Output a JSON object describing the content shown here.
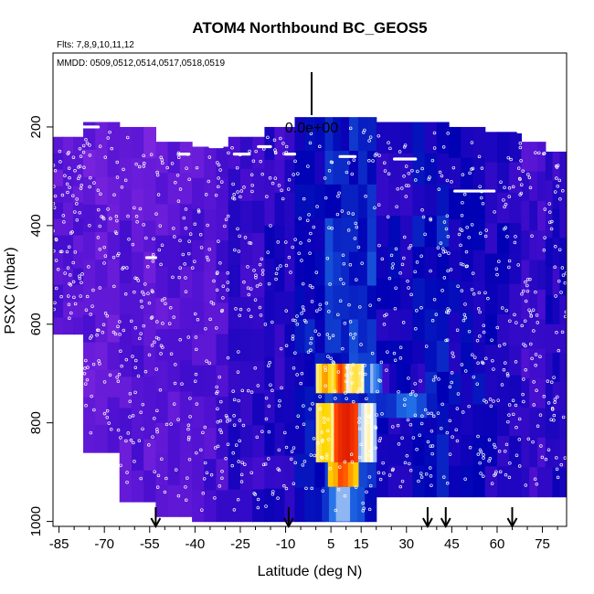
{
  "chart_data": {
    "type": "heatmap",
    "title": "ATOM4 Northbound BC_GEOS5",
    "subtitle_flights": "Flts: 7,8,9,10,11,12",
    "subtitle_dates": "MMDD: 0509,0512,0514,0517,0518,0519",
    "xlabel": "Latitude (deg N)",
    "ylabel": "PSXC (mbar)",
    "xlim": [
      -87,
      83
    ],
    "ylim": [
      1010,
      50
    ],
    "x_ticks": [
      -85,
      -70,
      -55,
      -40,
      -25,
      -10,
      5,
      15,
      30,
      45,
      60,
      75
    ],
    "y_ticks": [
      200,
      400,
      600,
      800,
      1000
    ],
    "legend_value": "0.0e+00",
    "arrow_latitudes": [
      -53,
      -9,
      37,
      43,
      65
    ],
    "colormap": [
      "#8a2be2",
      "#4b0fd0",
      "#0000b4",
      "#1e6ee6",
      "#ffffff",
      "#ffd700",
      "#ff4500",
      "#c80000"
    ],
    "columns": [
      {
        "lat0": -87,
        "lat1": -77,
        "ptop": 220,
        "pbot": 620,
        "v": 0.12
      },
      {
        "lat0": -77,
        "lat1": -65,
        "ptop": 190,
        "pbot": 860,
        "v": 0.1
      },
      {
        "lat0": -65,
        "lat1": -53,
        "ptop": 200,
        "pbot": 960,
        "v": 0.11
      },
      {
        "lat0": -53,
        "lat1": -41,
        "ptop": 230,
        "pbot": 990,
        "v": 0.12
      },
      {
        "lat0": -41,
        "lat1": -29,
        "ptop": 240,
        "pbot": 1000,
        "v": 0.14
      },
      {
        "lat0": -29,
        "lat1": -17,
        "ptop": 220,
        "pbot": 1000,
        "v": 0.2
      },
      {
        "lat0": -17,
        "lat1": -7,
        "ptop": 200,
        "pbot": 1000,
        "v": 0.22
      },
      {
        "lat0": -7,
        "lat1": 3,
        "ptop": 180,
        "pbot": 1000,
        "v": 0.3
      },
      {
        "lat0": 3,
        "lat1": 11,
        "ptop": 180,
        "pbot": 1000,
        "v": 0.34
      },
      {
        "lat0": 11,
        "lat1": 20,
        "ptop": 180,
        "pbot": 1000,
        "v": 0.34
      },
      {
        "lat0": 20,
        "lat1": 32,
        "ptop": 190,
        "pbot": 950,
        "v": 0.26
      },
      {
        "lat0": 32,
        "lat1": 44,
        "ptop": 190,
        "pbot": 950,
        "v": 0.3
      },
      {
        "lat0": 44,
        "lat1": 56,
        "ptop": 200,
        "pbot": 950,
        "v": 0.27
      },
      {
        "lat0": 56,
        "lat1": 68,
        "ptop": 210,
        "pbot": 950,
        "v": 0.24
      },
      {
        "lat0": 68,
        "lat1": 76,
        "ptop": 230,
        "pbot": 950,
        "v": 0.18
      },
      {
        "lat0": 76,
        "lat1": 83,
        "ptop": 250,
        "pbot": 950,
        "v": 0.22
      }
    ],
    "hotspots": [
      {
        "lat0": 0,
        "lat1": 6,
        "p0": 680,
        "p1": 740,
        "v": 0.78
      },
      {
        "lat0": 6,
        "lat1": 10,
        "p0": 680,
        "p1": 740,
        "v": 0.88
      },
      {
        "lat0": 10,
        "lat1": 16,
        "p0": 680,
        "p1": 740,
        "v": 0.7
      },
      {
        "lat0": 16,
        "lat1": 22,
        "p0": 680,
        "p1": 740,
        "v": 0.5
      },
      {
        "lat0": 0,
        "lat1": 6,
        "p0": 760,
        "p1": 880,
        "v": 0.75
      },
      {
        "lat0": 6,
        "lat1": 14,
        "p0": 760,
        "p1": 880,
        "v": 0.97
      },
      {
        "lat0": 14,
        "lat1": 20,
        "p0": 760,
        "p1": 880,
        "v": 0.62
      },
      {
        "lat0": 4,
        "lat1": 14,
        "p0": 880,
        "p1": 930,
        "v": 0.85
      },
      {
        "lat0": 2,
        "lat1": 16,
        "p0": 930,
        "p1": 1000,
        "v": 0.5
      },
      {
        "lat0": 20,
        "lat1": 40,
        "p0": 740,
        "p1": 790,
        "v": 0.45
      },
      {
        "lat0": 22,
        "lat1": 36,
        "p0": 680,
        "p1": 740,
        "v": 0.32
      }
    ],
    "flight_levels": [
      {
        "lat0": -77,
        "lat1": -72,
        "p": 200
      },
      {
        "lat0": -71,
        "lat1": -63,
        "p": 185
      },
      {
        "lat0": -45,
        "lat1": -42,
        "p": 255
      },
      {
        "lat0": -35,
        "lat1": -31,
        "p": 240
      },
      {
        "lat0": -27,
        "lat1": -22,
        "p": 255
      },
      {
        "lat0": -19,
        "lat1": -15,
        "p": 240
      },
      {
        "lat0": -10,
        "lat1": -7,
        "p": 255
      },
      {
        "lat0": 8,
        "lat1": 13,
        "p": 260
      },
      {
        "lat0": 26,
        "lat1": 33,
        "p": 265
      },
      {
        "lat0": 46,
        "lat1": 59,
        "p": 330
      },
      {
        "lat0": 67,
        "lat1": 73,
        "p": 210
      },
      {
        "lat0": -56,
        "lat1": -53,
        "p": 465
      }
    ]
  }
}
